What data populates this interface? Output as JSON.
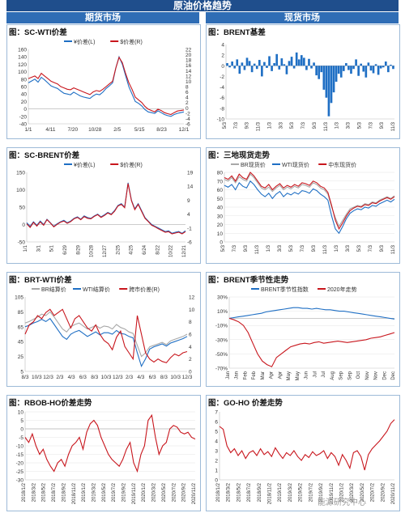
{
  "header": {
    "title": "原油价格趋势",
    "left_section": "期货市场",
    "right_section": "现货市场",
    "watermark": "能源研究中心"
  },
  "colors": {
    "blue": "#1f6fc4",
    "red": "#c8161d",
    "gray": "#a8a8a8",
    "banner": "#1f4e8c"
  },
  "chart_data": [
    {
      "id": "sc_wti",
      "type": "line",
      "title": "图：SC-WTI价差",
      "legend": [
        "¥价差(L)",
        "$价差(R)"
      ],
      "x_ticks": [
        "1/1",
        "4/11",
        "7/20",
        "10/28",
        "2/5",
        "5/15",
        "8/23",
        "12/1"
      ],
      "yleft_ticks": [
        160,
        140,
        120,
        100,
        80,
        60,
        40,
        20,
        0,
        -20,
        -40
      ],
      "yright_ticks": [
        22,
        20,
        18,
        16,
        14,
        12,
        10,
        8,
        6,
        4,
        2,
        0,
        -2,
        -4,
        -6
      ],
      "yleft_range": [
        -40,
        160
      ],
      "yright_range": [
        -6,
        22
      ],
      "series": [
        {
          "name": "¥价差(L)",
          "color": "blue",
          "axis": "left",
          "values": [
            70,
            75,
            80,
            72,
            85,
            78,
            70,
            62,
            58,
            55,
            48,
            42,
            40,
            38,
            45,
            40,
            35,
            32,
            30,
            28,
            35,
            40,
            38,
            45,
            55,
            62,
            70,
            110,
            140,
            120,
            90,
            60,
            40,
            20,
            15,
            8,
            -2,
            -8,
            -10,
            -12,
            -5,
            -10,
            -15,
            -18,
            -20,
            -15,
            -12,
            -10,
            -8
          ]
        },
        {
          "name": "$价差(R)",
          "color": "red",
          "axis": "right",
          "values": [
            11,
            11.5,
            12,
            11,
            13,
            12,
            11,
            10,
            9.5,
            9,
            8,
            7.5,
            7,
            6.8,
            7.5,
            7,
            6.5,
            6,
            5.5,
            5,
            6,
            6.5,
            6.2,
            7,
            8,
            9,
            10,
            15,
            19,
            17,
            13,
            9.5,
            7,
            4,
            3,
            2,
            0.5,
            -0.5,
            -1,
            -1.5,
            -0.5,
            -1,
            -1.8,
            -2.2,
            -2.5,
            -1.8,
            -1.2,
            -1,
            -0.8
          ]
        }
      ]
    },
    {
      "id": "brent_basis",
      "type": "bar",
      "title": "图：BRENT基差",
      "x_ticks": [
        "5/3",
        "7/3",
        "9/3",
        "11/3",
        "1/3",
        "3/3",
        "5/3",
        "7/3",
        "9/3",
        "11/3",
        "1/3",
        "3/3",
        "5/3",
        "7/3",
        "9/3",
        "11/3"
      ],
      "y_ticks": [
        4,
        2,
        0,
        -2,
        -4,
        -6,
        -8,
        -10
      ],
      "y_range": [
        -10,
        4
      ],
      "series": [
        {
          "name": "基差",
          "color": "blue",
          "values": [
            0.5,
            -0.3,
            0.8,
            -0.5,
            1.2,
            -1.5,
            0.6,
            -0.8,
            1.5,
            0.9,
            -1.2,
            0.4,
            -0.6,
            1.1,
            -2,
            0.7,
            -0.4,
            1.8,
            -1,
            0.5,
            2.2,
            -0.7,
            1.4,
            0.3,
            -1.6,
            0.9,
            1.7,
            -0.5,
            2.5,
            1.2,
            2,
            1.5,
            -0.8,
            1.3,
            -0.5,
            0.6,
            -1.8,
            -2.5,
            -1.2,
            -4.5,
            -6,
            -9.5,
            -7,
            -5,
            -3,
            -1.5,
            -2.2,
            -1,
            0.5,
            -0.8,
            -1.5,
            -0.6,
            1.2,
            -1.9,
            0.4,
            -1.1,
            -2.2,
            0.6,
            -0.9,
            -1.4,
            0.3,
            -1.7,
            -0.5,
            -0.3,
            0.8,
            -1.2,
            0.2,
            -0.6
          ]
        }
      ]
    },
    {
      "id": "sc_brent",
      "type": "line",
      "title": "图：SC-BRENT价差",
      "legend": [
        "¥价差(L)",
        "$价差(R)"
      ],
      "x_ticks": [
        "1/1",
        "3/1",
        "5/1",
        "6/29",
        "8/29",
        "10/28",
        "12/27",
        "2/25",
        "4/25",
        "6/24",
        "8/22",
        "10/22",
        "12/21"
      ],
      "yleft_ticks": [
        150,
        100,
        50,
        0,
        -50
      ],
      "yright_ticks": [
        19,
        14,
        9,
        4,
        -1,
        -6
      ],
      "yleft_range": [
        -50,
        150
      ],
      "yright_range": [
        -6,
        19
      ],
      "series": [
        {
          "name": "¥价差(L)",
          "color": "blue",
          "axis": "left",
          "values": [
            5,
            -5,
            8,
            -2,
            10,
            0,
            15,
            5,
            -5,
            2,
            8,
            12,
            5,
            10,
            18,
            22,
            15,
            25,
            20,
            18,
            25,
            30,
            22,
            28,
            35,
            30,
            40,
            55,
            60,
            50,
            120,
            70,
            45,
            60,
            40,
            20,
            10,
            0,
            -5,
            -10,
            -15,
            -20,
            -18,
            -25,
            -22,
            -20,
            -25,
            -18
          ]
        },
        {
          "name": "$价差(R)",
          "color": "red",
          "axis": "right",
          "values": [
            0.5,
            -0.8,
            1,
            -0.3,
            1.2,
            0,
            2,
            0.8,
            -0.6,
            0.3,
            1.1,
            1.5,
            0.7,
            1.3,
            2.3,
            2.8,
            2,
            3.1,
            2.5,
            2.3,
            3.2,
            3.8,
            2.8,
            3.5,
            4.4,
            3.8,
            5,
            6.9,
            7.5,
            6.3,
            15,
            8.8,
            5.6,
            7.5,
            5,
            2.5,
            1.3,
            0,
            -0.6,
            -1.3,
            -1.9,
            -2.5,
            -2.3,
            -3.1,
            -2.8,
            -2.5,
            -3.1,
            -2.3
          ]
        }
      ]
    },
    {
      "id": "spot_three",
      "type": "line",
      "title": "图：三地现货走势",
      "legend": [
        "BR现货价",
        "WTI现货价",
        "中东现货价"
      ],
      "x_ticks": [
        "5/3",
        "7/3",
        "9/3",
        "11/3",
        "1/3",
        "3/3",
        "5/3",
        "7/3",
        "9/3",
        "11/3",
        "1/3",
        "3/3",
        "5/3",
        "7/3",
        "9/3",
        "11/3"
      ],
      "y_ticks": [
        80,
        70,
        60,
        50,
        40,
        30,
        20,
        10,
        0
      ],
      "y_range": [
        0,
        80
      ],
      "series": [
        {
          "name": "BR现货价",
          "color": "gray",
          "values": [
            72,
            70,
            74,
            68,
            75,
            72,
            70,
            78,
            74,
            68,
            62,
            60,
            63,
            58,
            62,
            65,
            60,
            63,
            61,
            64,
            62,
            66,
            65,
            63,
            68,
            66,
            62,
            60,
            55,
            40,
            28,
            18,
            25,
            32,
            38,
            40,
            42,
            41,
            44,
            43,
            46,
            45,
            48,
            50,
            52,
            50,
            53
          ]
        },
        {
          "name": "WTI现货价",
          "color": "blue",
          "values": [
            65,
            63,
            66,
            60,
            68,
            64,
            62,
            70,
            66,
            60,
            55,
            52,
            56,
            50,
            55,
            58,
            52,
            56,
            54,
            57,
            55,
            59,
            58,
            56,
            61,
            59,
            55,
            52,
            48,
            30,
            15,
            10,
            18,
            27,
            33,
            36,
            38,
            37,
            40,
            39,
            42,
            41,
            44,
            46,
            48,
            46,
            49
          ]
        },
        {
          "name": "中东现货价",
          "color": "red",
          "values": [
            74,
            72,
            76,
            70,
            78,
            74,
            72,
            80,
            76,
            70,
            64,
            62,
            66,
            60,
            64,
            67,
            62,
            65,
            63,
            66,
            64,
            68,
            67,
            65,
            70,
            68,
            64,
            62,
            57,
            42,
            25,
            15,
            22,
            30,
            36,
            39,
            41,
            40,
            43,
            42,
            45,
            44,
            47,
            49,
            51,
            49,
            52
          ]
        }
      ]
    },
    {
      "id": "brt_wti",
      "type": "line",
      "title": "图：BRT-WTI价差",
      "legend": [
        "BR结算价",
        "WTI结算价",
        "跨市价差(R)"
      ],
      "x_ticks": [
        "8/3",
        "10/3",
        "12/3",
        "2/3",
        "4/3",
        "6/3",
        "8/3",
        "10/3",
        "12/3",
        "2/3",
        "4/3",
        "6/3",
        "8/3",
        "10/3",
        "12/3"
      ],
      "yleft_ticks": [
        105,
        85,
        65,
        45,
        25,
        5
      ],
      "yright_ticks": [
        12,
        10,
        8,
        6,
        4,
        2,
        0
      ],
      "yleft_range": [
        5,
        105
      ],
      "yright_range": [
        0,
        12
      ],
      "series": [
        {
          "name": "BR结算价",
          "color": "gray",
          "axis": "left",
          "values": [
            70,
            72,
            75,
            78,
            82,
            80,
            85,
            78,
            70,
            62,
            58,
            65,
            68,
            70,
            66,
            62,
            64,
            67,
            63,
            66,
            65,
            62,
            68,
            64,
            62,
            58,
            56,
            40,
            25,
            30,
            38,
            40,
            42,
            44,
            41,
            46,
            48,
            50,
            52,
            55
          ]
        },
        {
          "name": "WTI结算价",
          "color": "blue",
          "axis": "left",
          "values": [
            65,
            67,
            70,
            72,
            75,
            72,
            76,
            68,
            60,
            52,
            48,
            55,
            58,
            60,
            56,
            52,
            55,
            58,
            54,
            57,
            57,
            55,
            60,
            56,
            55,
            52,
            50,
            30,
            12,
            22,
            35,
            38,
            40,
            42,
            39,
            43,
            45,
            47,
            49,
            52
          ]
        },
        {
          "name": "跨市价差(R)",
          "color": "red",
          "axis": "right",
          "values": [
            6,
            7.5,
            8,
            9,
            8.5,
            9.5,
            10,
            9,
            9.5,
            10,
            8.5,
            7,
            8.5,
            9,
            8,
            7,
            6.5,
            7.5,
            6,
            5,
            4.5,
            3.5,
            5.5,
            6.5,
            4,
            3,
            2,
            9,
            6,
            3,
            2,
            1.5,
            2,
            1.6,
            1.4,
            2.2,
            2.8,
            2.5,
            3,
            3.2
          ]
        }
      ]
    },
    {
      "id": "brent_season",
      "type": "line",
      "title": "图：BRENT季节性走势",
      "legend": [
        "BRENT季节性指数",
        "2020年走势"
      ],
      "x_ticks": [
        "Jan",
        "Jan",
        "Feb",
        "Feb",
        "Mar",
        "Apr",
        "Apr",
        "May",
        "May",
        "Jun",
        "Jul",
        "Jul",
        "Aug",
        "Sep",
        "Sep",
        "Oct",
        "Nov",
        "Nov",
        "Dec",
        "Dec"
      ],
      "y_ticks": [
        "30%",
        "10%",
        "-10%",
        "-30%",
        "-50%",
        "-70%"
      ],
      "y_range": [
        -70,
        30
      ],
      "series": [
        {
          "name": "BRENT季节性指数",
          "color": "blue",
          "values": [
            0,
            1,
            2,
            3,
            4,
            5,
            6,
            7,
            9,
            10,
            11,
            12,
            13,
            14,
            15,
            15,
            14,
            14,
            13,
            14,
            13,
            12,
            12,
            11,
            10,
            10,
            9,
            8,
            7,
            6,
            5,
            4,
            3,
            2,
            1,
            0,
            -1
          ]
        },
        {
          "name": "2020年走势",
          "color": "red",
          "values": [
            0,
            -2,
            -5,
            -10,
            -20,
            -35,
            -50,
            -60,
            -65,
            -68,
            -55,
            -50,
            -45,
            -40,
            -38,
            -36,
            -35,
            -36,
            -34,
            -33,
            -35,
            -34,
            -33,
            -32,
            -33,
            -34,
            -33,
            -32,
            -31,
            -30,
            -28,
            -27,
            -26,
            -24,
            -22,
            -20
          ]
        }
      ]
    },
    {
      "id": "rbob_ho",
      "type": "line",
      "title": "图：RBOB-HO价差走势",
      "x_ticks": [
        "2018/1/2",
        "2018/3/2",
        "2018/5/2",
        "2018/7/2",
        "2018/9/2",
        "2018/11/2",
        "2019/1/2",
        "2019/3/2",
        "2019/5/2",
        "2019/7/2",
        "2019/9/2",
        "2019/11/2",
        "2020/1/2",
        "2020/3/2",
        "2020/5/2",
        "2020/7/2",
        "2020/9/2",
        "2020/11/2"
      ],
      "y_ticks": [
        10,
        5,
        0,
        -5,
        -10,
        -15,
        -20,
        -25,
        -30
      ],
      "y_range": [
        -30,
        10
      ],
      "series": [
        {
          "name": "RBOB-HO",
          "color": "red",
          "values": [
            -5,
            -8,
            -3,
            -10,
            -15,
            -12,
            -18,
            -22,
            -25,
            -20,
            -18,
            -22,
            -15,
            -10,
            -8,
            -5,
            -12,
            -2,
            3,
            5,
            2,
            -5,
            -10,
            -15,
            -18,
            -20,
            -22,
            -18,
            -12,
            -8,
            -20,
            -25,
            -15,
            -10,
            5,
            8,
            -5,
            -15,
            -10,
            -8,
            0,
            2,
            1,
            -2,
            -3,
            -2,
            -5,
            -6
          ]
        }
      ]
    },
    {
      "id": "go_ho",
      "type": "line",
      "title": "图：GO-HO 价差走势",
      "x_ticks": [
        "2018/1/2",
        "2018/3/2",
        "2018/5/2",
        "2018/7/2",
        "2018/9/2",
        "2018/11/2",
        "2019/1/2",
        "2019/3/2",
        "2019/5/2",
        "2019/7/2",
        "2019/9/2",
        "2019/11/2",
        "2020/1/2",
        "2020/3/2",
        "2020/5/2",
        "2020/7/2",
        "2020/9/2",
        "2020/11/2"
      ],
      "y_ticks": [
        7,
        6,
        5,
        4,
        3,
        2,
        1,
        0
      ],
      "y_range": [
        0,
        7
      ],
      "series": [
        {
          "name": "GO-HO",
          "color": "red",
          "values": [
            5.5,
            5.2,
            3.5,
            2.8,
            3.2,
            2.5,
            3,
            2.2,
            2.8,
            3,
            2.5,
            3.2,
            2.6,
            2.9,
            2.4,
            3.3,
            2.7,
            2.2,
            2.8,
            2.5,
            3,
            2.4,
            2,
            2.6,
            2.3,
            2.9,
            2.5,
            2.7,
            3,
            2.2,
            2.8,
            2.4,
            1.5,
            2.6,
            2,
            1.2,
            2.8,
            3,
            2.4,
            1,
            2.6,
            3.2,
            3.6,
            4,
            4.5,
            5,
            5.8,
            6.2
          ]
        }
      ]
    }
  ]
}
